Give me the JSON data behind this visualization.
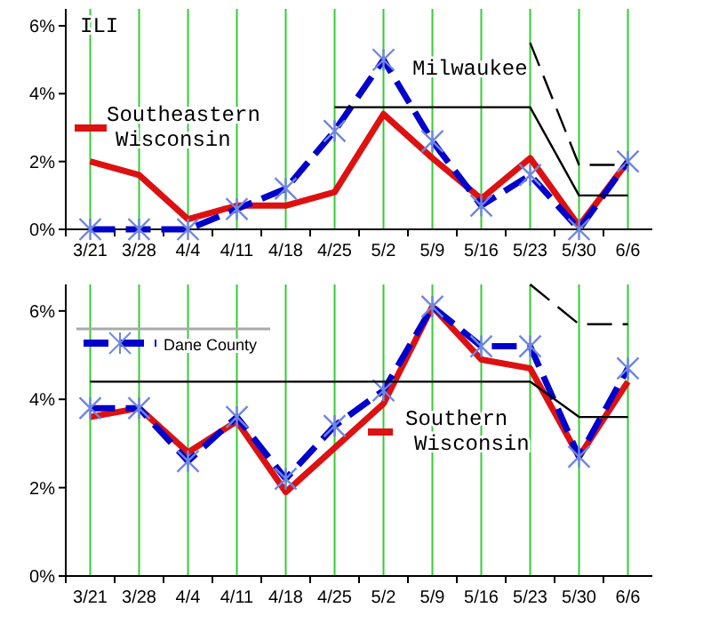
{
  "chart_data": [
    {
      "type": "line",
      "annotations": [
        "ILI"
      ],
      "categories": [
        "3/21",
        "3/28",
        "4/4",
        "4/11",
        "4/18",
        "4/25",
        "5/2",
        "5/9",
        "5/16",
        "5/23",
        "5/30",
        "6/6"
      ],
      "ylim": [
        0,
        6.5
      ],
      "yticks": [
        {
          "value": 0,
          "label": "0%"
        },
        {
          "value": 2,
          "label": "2%"
        },
        {
          "value": 4,
          "label": "4%"
        },
        {
          "value": 6,
          "label": "6%"
        }
      ],
      "grid": "x",
      "series": [
        {
          "name": "Southeastern Wisconsin",
          "color": "#dd1111",
          "line_style": "solid",
          "marker": "none",
          "values": [
            2.0,
            1.6,
            0.3,
            0.7,
            0.7,
            1.1,
            3.4,
            2.1,
            0.9,
            2.1,
            0.1,
            2.0
          ]
        },
        {
          "name": "Milwaukee",
          "color": "#0000cc",
          "line_style": "dashed",
          "marker": "cross",
          "values": [
            0,
            0,
            0,
            0.6,
            1.2,
            2.9,
            5.0,
            2.6,
            0.7,
            1.6,
            0.0,
            2.0
          ]
        },
        {
          "color": "#000000",
          "line_style": "solid",
          "marker": "none",
          "values": [
            null,
            null,
            null,
            null,
            null,
            3.6,
            3.6,
            3.6,
            3.6,
            3.6,
            1.0,
            1.0
          ]
        },
        {
          "color": "#000000",
          "line_style": "dashed",
          "marker": "none",
          "values": [
            null,
            null,
            null,
            null,
            null,
            null,
            null,
            null,
            null,
            5.5,
            1.9,
            1.9
          ]
        }
      ]
    },
    {
      "type": "line",
      "categories": [
        "3/21",
        "3/28",
        "4/4",
        "4/11",
        "4/18",
        "4/25",
        "5/2",
        "5/9",
        "5/16",
        "5/23",
        "5/30",
        "6/6"
      ],
      "ylim": [
        0,
        6.6
      ],
      "legend": "top left",
      "yticks": [
        {
          "value": 0,
          "label": "0%"
        },
        {
          "value": 2,
          "label": "2%"
        },
        {
          "value": 4,
          "label": "4%"
        },
        {
          "value": 6,
          "label": "6%"
        }
      ],
      "grid": "x",
      "series": [
        {
          "name": "Southern Wisconsin",
          "color": "#dd1111",
          "line_style": "solid",
          "marker": "none",
          "values": [
            3.6,
            3.8,
            2.8,
            3.5,
            1.9,
            2.9,
            3.9,
            6.1,
            4.9,
            4.7,
            2.7,
            4.4
          ]
        },
        {
          "name": "Dane County",
          "color": "#0000cc",
          "line_style": "dashed",
          "marker": "cross",
          "values": [
            3.8,
            3.8,
            2.6,
            3.6,
            2.2,
            3.4,
            4.2,
            6.1,
            5.2,
            5.2,
            2.7,
            4.7
          ]
        },
        {
          "color": "#000000",
          "line_style": "solid",
          "marker": "none",
          "values": [
            4.4,
            4.4,
            4.4,
            4.4,
            4.4,
            4.4,
            4.4,
            4.4,
            4.4,
            4.4,
            3.6,
            3.6
          ]
        },
        {
          "color": "#000000",
          "line_style": "dashed",
          "marker": "none",
          "values": [
            null,
            null,
            null,
            null,
            null,
            null,
            null,
            null,
            null,
            6.6,
            5.7,
            5.7
          ]
        }
      ]
    }
  ]
}
